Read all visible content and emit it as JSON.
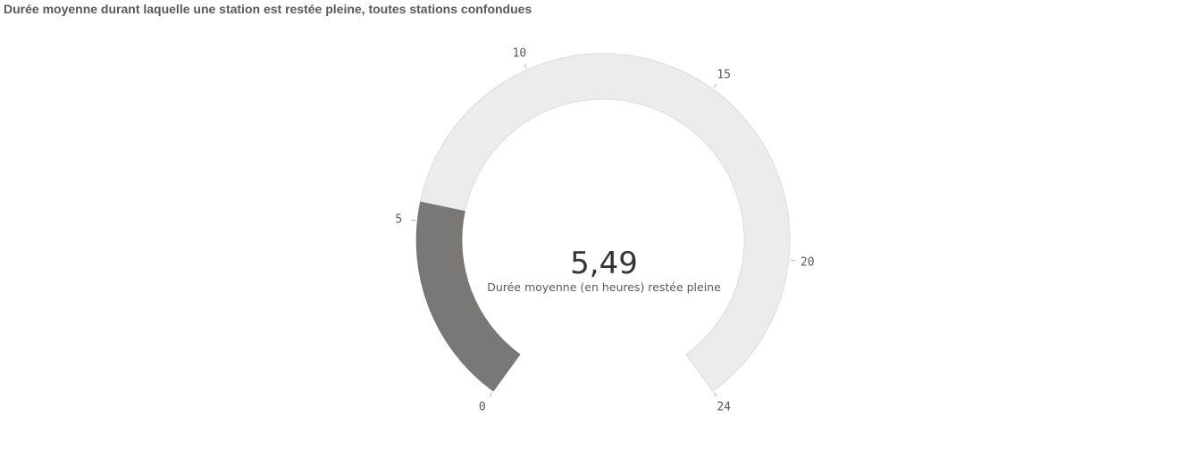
{
  "chart_data": {
    "type": "gauge",
    "title": "Durée moyenne durant laquelle une station est restée pleine, toutes stations confondues",
    "value": 5.49,
    "value_label": "5,49",
    "measure_label": "Durée moyenne (en heures) restée pleine",
    "range": [
      0,
      24
    ],
    "ticks": [
      "0",
      "5",
      "10",
      "15",
      "20",
      "24"
    ],
    "tick_values": [
      0,
      5,
      10,
      15,
      20,
      24
    ],
    "colors": {
      "fill": "#7a7877",
      "track": "#ececec",
      "track_stroke": "#dcdcdc",
      "tick": "#b3b3b3"
    }
  }
}
